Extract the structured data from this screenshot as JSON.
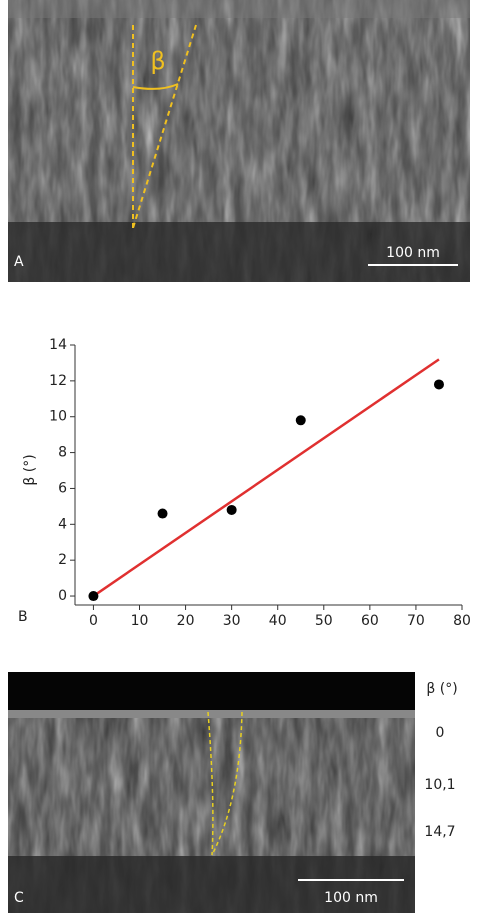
{
  "panel_a": {
    "label": "A",
    "angle_symbol": "β",
    "scale_bar": "100 nm"
  },
  "chart_data": {
    "type": "scatter",
    "label": "B",
    "ylabel": "β (°)",
    "x": [
      0,
      15,
      30,
      45,
      75
    ],
    "series": [
      {
        "color": "#000000",
        "values": [
          0,
          4.6,
          4.8,
          9.8,
          11.8
        ]
      }
    ],
    "fit_line": {
      "color": "#e03030",
      "x": [
        0,
        75
      ],
      "values": [
        0,
        13.2
      ]
    },
    "xlim": [
      -4,
      80
    ],
    "ylim": [
      -0.5,
      14
    ],
    "xticks": [
      0,
      10,
      20,
      30,
      40,
      50,
      60,
      70,
      80
    ],
    "yticks": [
      0,
      2,
      4,
      6,
      8,
      10,
      12,
      14
    ]
  },
  "panel_c": {
    "label": "C",
    "column_header": "β (°)",
    "rows": [
      "0",
      "10,1",
      "14,7"
    ],
    "scale_bar": "100 nm"
  }
}
